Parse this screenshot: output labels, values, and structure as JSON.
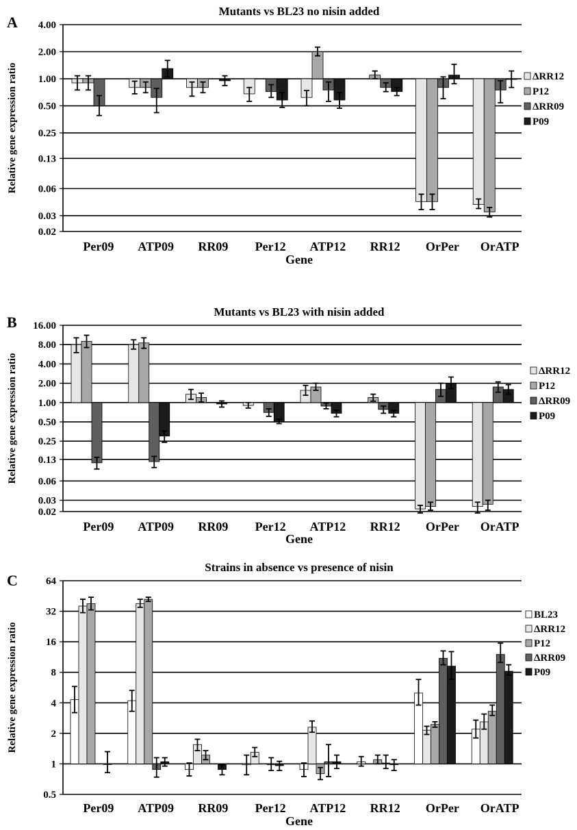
{
  "series_colors": {
    "BL23": "#ffffff",
    "ΔRR12": "#e6e6e6",
    "P12": "#a8a8a8",
    "ΔRR09": "#5f5f5f",
    "P09": "#1b1b1b"
  },
  "chart_data": [
    {
      "type": "bar",
      "panel_letter": "A",
      "title": "Mutants vs BL23 no nisin added",
      "xlabel": "Gene",
      "ylabel": "Relative gene expression ratio",
      "yscale": "log2",
      "baseline": 1,
      "ylim": [
        0.02,
        4
      ],
      "yticks": [
        4,
        2,
        1,
        0.5,
        0.25,
        0.13,
        0.06,
        0.03,
        0.02
      ],
      "ytick_labels": [
        "4.00",
        "2.00",
        "1.00",
        "0.50",
        "0.25",
        "0.13",
        "0.06",
        "0.03",
        "0.02"
      ],
      "grid": true,
      "legend_position": "right",
      "categories": [
        "Per09",
        "ATP09",
        "RR09",
        "Per12",
        "ATP12",
        "RR12",
        "OrPer",
        "OrATP"
      ],
      "series": [
        {
          "name": "ΔRR12",
          "values": [
            0.9,
            0.8,
            0.8,
            0.68,
            0.62,
            null,
            0.043,
            0.04
          ],
          "err_low": [
            0.75,
            0.68,
            0.64,
            0.56,
            0.5,
            null,
            0.035,
            0.036
          ],
          "err_high": [
            1.08,
            0.94,
            0.92,
            0.8,
            0.74,
            null,
            0.052,
            0.046
          ]
        },
        {
          "name": "P12",
          "values": [
            0.9,
            0.8,
            0.8,
            null,
            2.0,
            1.1,
            0.043,
            0.033
          ],
          "err_low": [
            0.75,
            0.7,
            0.7,
            null,
            1.8,
            1.0,
            0.035,
            0.029
          ],
          "err_high": [
            1.08,
            0.92,
            0.92,
            null,
            2.25,
            1.22,
            0.052,
            0.037
          ]
        },
        {
          "name": "ΔRR09",
          "values": [
            0.5,
            0.62,
            null,
            0.72,
            0.75,
            0.8,
            0.8,
            0.75
          ],
          "err_low": [
            0.39,
            0.42,
            null,
            0.62,
            0.56,
            0.72,
            0.6,
            0.54
          ],
          "err_high": [
            0.65,
            0.78,
            null,
            0.86,
            0.92,
            0.9,
            1.05,
            0.95
          ]
        },
        {
          "name": "P09",
          "values": [
            null,
            1.3,
            0.95,
            0.58,
            0.58,
            0.72,
            1.1,
            1.0
          ],
          "err_low": [
            null,
            1.05,
            0.84,
            0.48,
            0.47,
            0.65,
            0.88,
            0.8
          ],
          "err_high": [
            null,
            1.6,
            1.08,
            0.7,
            0.7,
            0.8,
            1.45,
            1.22
          ]
        }
      ]
    },
    {
      "type": "bar",
      "panel_letter": "B",
      "title": "Mutants vs BL23 with nisin added",
      "xlabel": "Gene",
      "ylabel": "Relative gene expression ratio",
      "yscale": "log2",
      "baseline": 1,
      "ylim": [
        0.02,
        16
      ],
      "yticks": [
        16,
        8,
        4,
        2,
        1,
        0.5,
        0.25,
        0.13,
        0.06,
        0.03,
        0.02
      ],
      "ytick_labels": [
        "16.00",
        "8.00",
        "4.00",
        "2.00",
        "1.00",
        "0.50",
        "0.25",
        "0.13",
        "0.06",
        "0.03",
        "0.02"
      ],
      "grid": true,
      "legend_position": "right",
      "categories": [
        "Per09",
        "ATP09",
        "RR09",
        "Per12",
        "ATP12",
        "RR12",
        "OrPer",
        "OrATP"
      ],
      "series": [
        {
          "name": "ΔRR12",
          "values": [
            8.0,
            8.0,
            1.35,
            0.9,
            1.55,
            null,
            0.022,
            0.024
          ],
          "err_low": [
            6.0,
            6.8,
            1.12,
            0.82,
            1.3,
            null,
            0.019,
            0.019
          ],
          "err_high": [
            10.2,
            9.5,
            1.6,
            1.0,
            1.85,
            null,
            0.025,
            0.028
          ]
        },
        {
          "name": "P12",
          "values": [
            9.0,
            8.5,
            1.2,
            null,
            1.75,
            1.2,
            0.024,
            0.026
          ],
          "err_low": [
            7.2,
            7.0,
            1.02,
            null,
            1.55,
            1.05,
            0.021,
            0.021
          ],
          "err_high": [
            11.2,
            10.2,
            1.4,
            null,
            2.0,
            1.35,
            0.028,
            0.03
          ]
        },
        {
          "name": "ΔRR09",
          "values": [
            0.115,
            0.12,
            null,
            0.7,
            0.88,
            0.78,
            1.6,
            1.75
          ],
          "err_low": [
            0.092,
            0.097,
            null,
            0.61,
            0.8,
            0.68,
            1.25,
            1.45
          ],
          "err_high": [
            0.14,
            0.145,
            null,
            0.8,
            0.98,
            0.88,
            2.0,
            2.1
          ]
        },
        {
          "name": "P09",
          "values": [
            null,
            0.3,
            0.95,
            0.5,
            0.68,
            0.68,
            2.0,
            1.6
          ],
          "err_low": [
            null,
            0.24,
            0.85,
            0.47,
            0.6,
            0.6,
            1.65,
            1.35
          ],
          "err_high": [
            null,
            0.36,
            1.06,
            0.55,
            0.76,
            0.76,
            2.5,
            1.9
          ]
        }
      ]
    },
    {
      "type": "bar",
      "panel_letter": "C",
      "title": "Strains in absence vs presence of nisin",
      "xlabel": "Gene",
      "ylabel": "Relative gene expression ratio",
      "yscale": "log2",
      "baseline": 1,
      "ylim": [
        0.5,
        64
      ],
      "yticks": [
        64,
        32,
        16,
        8,
        4,
        2,
        1,
        0.5
      ],
      "ytick_labels": [
        "64",
        "32",
        "16",
        "8",
        "4",
        "2",
        "1",
        "0.5"
      ],
      "grid": true,
      "legend_position": "right",
      "categories": [
        "Per09",
        "ATP09",
        "RR09",
        "Per12",
        "ATP12",
        "RR12",
        "OrPer",
        "OrATP"
      ],
      "series": [
        {
          "name": "BL23",
          "values": [
            4.3,
            4.2,
            0.88,
            0.98,
            0.88,
            1.05,
            5.0,
            2.2
          ],
          "err_low": [
            3.2,
            3.3,
            0.76,
            0.78,
            0.75,
            0.95,
            3.8,
            1.8
          ],
          "err_high": [
            5.8,
            5.3,
            1.02,
            1.22,
            1.02,
            1.18,
            6.8,
            2.7
          ]
        },
        {
          "name": "ΔRR12",
          "values": [
            36.0,
            38.0,
            1.55,
            1.3,
            2.3,
            null,
            2.15,
            2.6
          ],
          "err_low": [
            31.0,
            35.0,
            1.35,
            1.18,
            2.05,
            null,
            1.95,
            2.2
          ],
          "err_high": [
            42.0,
            42.0,
            1.75,
            1.45,
            2.65,
            null,
            2.35,
            3.1
          ]
        },
        {
          "name": "P12",
          "values": [
            38.0,
            42.0,
            1.22,
            null,
            0.8,
            1.1,
            2.45,
            3.3
          ],
          "err_low": [
            33.0,
            40.0,
            1.1,
            null,
            0.7,
            1.0,
            2.3,
            3.0
          ],
          "err_high": [
            44.0,
            44.0,
            1.35,
            null,
            0.92,
            1.22,
            2.6,
            3.8
          ]
        },
        {
          "name": "ΔRR09",
          "values": [
            null,
            0.88,
            null,
            0.98,
            1.05,
            1.02,
            11.0,
            12.0
          ],
          "err_low": [
            null,
            0.74,
            null,
            0.86,
            0.75,
            0.9,
            9.5,
            10.0
          ],
          "err_high": [
            null,
            1.15,
            null,
            1.15,
            1.55,
            1.22,
            13.0,
            15.5
          ]
        },
        {
          "name": "P09",
          "values": [
            1.0,
            1.05,
            0.88,
            0.96,
            1.05,
            0.98,
            9.2,
            8.2
          ],
          "err_low": [
            0.82,
            0.95,
            0.78,
            0.86,
            0.9,
            0.86,
            6.8,
            7.5
          ],
          "err_high": [
            1.32,
            1.15,
            0.98,
            1.06,
            1.22,
            1.1,
            12.8,
            9.5
          ]
        }
      ]
    }
  ]
}
